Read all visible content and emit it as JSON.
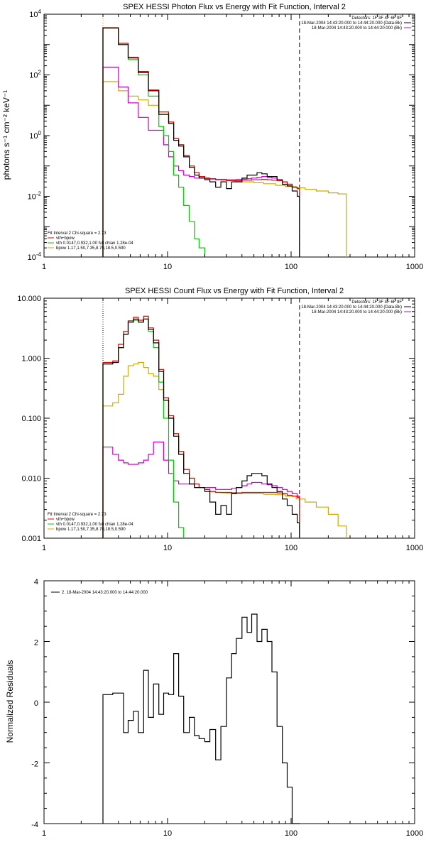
{
  "colors": {
    "data": "#000000",
    "total": "#dd0000",
    "vth": "#00cc00",
    "bpow": "#cc00cc",
    "sum_gold": "#ccaa00",
    "axis": "#000000"
  },
  "chart_data": [
    {
      "type": "line",
      "title": "SPEX HESSI Photon Flux vs Energy with Fit Function, Interval 2",
      "xlabel": "",
      "ylabel": "photons s⁻¹ cm⁻² keV⁻¹",
      "xscale": "log",
      "yscale": "log",
      "xlim": [
        1,
        1000
      ],
      "ylim": [
        0.0001,
        10000
      ],
      "xticks": [
        "1",
        "10",
        "100",
        "1000"
      ],
      "yticks": [
        {
          "base": "10",
          "exp": "-4"
        },
        {
          "base": "10",
          "exp": "-2"
        },
        {
          "base": "10",
          "exp": "0"
        },
        {
          "base": "10",
          "exp": "2"
        },
        {
          "base": "10",
          "exp": "4"
        }
      ],
      "legend_top": [
        "Detectors: 1F 3F 4F 6F 9F",
        "18-Mar-2004 14:43:20.000 to 14:44:20.000 (Data-Bk)",
        "18-Mar-2004 14:43:20.000 to 14:44:20.000 (Bk)"
      ],
      "legend_bottom": [
        "Fit Interval 2   Chi-square = 2.73",
        "vth+bpow",
        "vth 0.0147,0.932,1.00  full chian 1.28e-04",
        "bpow 1.17,1.50,7.35,8.70,18.5,0.590"
      ],
      "vlines": [
        {
          "x": 3,
          "style": "dotted",
          "color": "#ff8800"
        },
        {
          "x": 117,
          "style": "dashed",
          "color": "#000000"
        }
      ],
      "series": [
        {
          "color": "data",
          "x": [
            3,
            3.3,
            3.6,
            4,
            4.4,
            4.8,
            5.3,
            5.8,
            6.4,
            7,
            7.7,
            8.5,
            9.3,
            10.2,
            11.2,
            12.3,
            13.5,
            15,
            16.5,
            18,
            20,
            22,
            24.5,
            27,
            30,
            33,
            36,
            40,
            44,
            48,
            53,
            58,
            64,
            70,
            77,
            85,
            93,
            102,
            112,
            117
          ],
          "y": [
            3500,
            3500,
            3500,
            1000,
            1000,
            360,
            360,
            120,
            120,
            30,
            30,
            5,
            5,
            2.5,
            0.7,
            0.45,
            0.2,
            0.09,
            0.05,
            0.04,
            0.035,
            0.03,
            0.02,
            0.03,
            0.018,
            0.03,
            0.03,
            0.04,
            0.05,
            0.05,
            0.06,
            0.055,
            0.045,
            0.045,
            0.035,
            0.025,
            0.022,
            0.015,
            0.01,
            0
          ]
        },
        {
          "color": "total",
          "x": [
            3,
            3.3,
            3.6,
            4,
            4.4,
            4.8,
            5.3,
            5.8,
            6.4,
            7,
            7.7,
            8.5,
            9.3,
            10.2,
            11.2,
            12.3,
            13.5,
            15,
            16.5,
            18,
            20,
            22,
            24.5,
            27,
            30,
            33,
            36,
            40,
            44,
            48,
            53,
            58,
            64,
            70,
            77,
            85,
            93,
            102,
            112,
            117
          ],
          "y": [
            3600,
            3600,
            3600,
            1100,
            1100,
            380,
            380,
            130,
            130,
            32,
            32,
            6,
            6,
            2.8,
            0.8,
            0.5,
            0.22,
            0.1,
            0.06,
            0.045,
            0.04,
            0.038,
            0.035,
            0.035,
            0.033,
            0.033,
            0.033,
            0.034,
            0.034,
            0.035,
            0.035,
            0.036,
            0.035,
            0.034,
            0.033,
            0.03,
            0.025,
            0.02,
            0.018,
            0
          ]
        },
        {
          "color": "vth",
          "x": [
            3,
            3.3,
            3.6,
            4,
            4.4,
            4.8,
            5.3,
            5.8,
            6.4,
            7,
            7.7,
            8.5,
            9.3,
            10.2,
            11.2,
            12.3,
            13.5,
            15,
            16.5,
            18,
            20
          ],
          "y": [
            3500,
            3500,
            3500,
            1000,
            1000,
            320,
            320,
            100,
            100,
            20,
            20,
            2,
            1,
            0.3,
            0.05,
            0.02,
            0.005,
            0.0015,
            0.0004,
            0.0002,
            0
          ]
        },
        {
          "color": "bpow",
          "x": [
            3,
            3.3,
            3.6,
            4,
            4.4,
            4.8,
            5.3,
            5.8,
            6.4,
            7,
            7.7,
            8.5,
            9.3,
            10.2,
            11.2,
            12.3,
            13.5,
            15,
            16.5,
            18,
            20,
            22,
            24.5,
            27,
            30,
            33,
            36,
            40,
            44,
            48,
            53,
            58,
            64,
            70,
            77,
            85,
            93,
            102,
            112,
            117
          ],
          "y": [
            180,
            180,
            180,
            40,
            40,
            12,
            12,
            4,
            4,
            1.5,
            1.5,
            1.5,
            0.5,
            0.2,
            0.1,
            0.07,
            0.05,
            0.045,
            0.04,
            0.04,
            0.038,
            0.037,
            0.036,
            0.036,
            0.035,
            0.035,
            0.036,
            0.037,
            0.038,
            0.04,
            0.042,
            0.045,
            0.042,
            0.04,
            0.035,
            0.03,
            0.025,
            0.02,
            0.018,
            0
          ]
        },
        {
          "color": "sum_gold",
          "x": [
            3,
            3.3,
            3.6,
            4,
            4.4,
            4.8,
            5.3,
            5.8,
            6.4,
            7,
            7.7,
            8.5,
            9.3,
            10.2,
            11.2,
            12.3,
            13.5,
            15,
            16.5,
            18,
            20,
            22,
            24.5,
            27,
            30,
            35,
            40,
            50,
            60,
            75,
            90,
            110,
            130,
            160,
            200,
            240,
            280
          ],
          "y": [
            60,
            60,
            60,
            30,
            30,
            20,
            20,
            15,
            15,
            10,
            10,
            6,
            6,
            2.8,
            0.8,
            0.5,
            0.22,
            0.1,
            0.06,
            0.045,
            0.04,
            0.038,
            0.035,
            0.034,
            0.033,
            0.032,
            0.03,
            0.028,
            0.026,
            0.023,
            0.021,
            0.019,
            0.017,
            0.015,
            0.013,
            0.012,
            0
          ]
        }
      ]
    },
    {
      "type": "line",
      "title": "SPEX HESSI Count Flux vs Energy with Fit Function, Interval 2",
      "xlabel": "",
      "ylabel": "",
      "xscale": "log",
      "yscale": "log",
      "xlim": [
        1,
        1000
      ],
      "ylim": [
        0.001,
        10
      ],
      "xticks": [
        "1",
        "10",
        "100",
        "1000"
      ],
      "yticks": [
        "0.001",
        "0.010",
        "0.100",
        "1.000",
        "10.000"
      ],
      "legend_top": [
        "Detectors: 1F 3F 4F 6F 9F",
        "18-Mar-2004 14:43:20.000 to 14:44:20.000 (Data-Bk)",
        "18-Mar-2004 14:43:20.000 to 14:44:20.000 (Bk)"
      ],
      "legend_bottom": [
        "Fit Interval 2   Chi-square = 2.73",
        "vth+bpow",
        "vth 0.0147,0.932,1.00  full chian 1.28e-04",
        "bpow 1.17,1.50,7.35,8.70,18.5,0.590"
      ],
      "vlines": [
        {
          "x": 3,
          "style": "dotted",
          "color": "#000000"
        },
        {
          "x": 117,
          "style": "dashed",
          "color": "#000000"
        }
      ],
      "series": [
        {
          "color": "data",
          "x": [
            3,
            3.3,
            3.6,
            4,
            4.4,
            4.8,
            5.3,
            5.8,
            6.4,
            7,
            7.7,
            8.5,
            9.3,
            10.2,
            11.2,
            12.3,
            13.5,
            15,
            16.5,
            18,
            20,
            22,
            24.5,
            27,
            30,
            33,
            36,
            40,
            44,
            48,
            53,
            58,
            64,
            70,
            77,
            85,
            93,
            102,
            112,
            117
          ],
          "y": [
            0.8,
            0.8,
            0.85,
            1.5,
            2.5,
            4,
            4.5,
            4,
            4.5,
            3,
            1.8,
            0.6,
            0.2,
            0.1,
            0.05,
            0.025,
            0.012,
            0.008,
            0.007,
            0.007,
            0.006,
            0.004,
            0.0025,
            0.0035,
            0.0025,
            0.0055,
            0.007,
            0.009,
            0.011,
            0.012,
            0.012,
            0.011,
            0.008,
            0.007,
            0.006,
            0.0045,
            0.0035,
            0.0025,
            0.0018,
            0
          ]
        },
        {
          "color": "total",
          "x": [
            3,
            3.3,
            3.6,
            4,
            4.4,
            4.8,
            5.3,
            5.8,
            6.4,
            7,
            7.7,
            8.5,
            9.3,
            10.2,
            11.2,
            12.3,
            13.5,
            15,
            16.5,
            18,
            20,
            22,
            24.5,
            27,
            30,
            33,
            36,
            40,
            44,
            48,
            53,
            58,
            64,
            70,
            77,
            85,
            93,
            102,
            112,
            117
          ],
          "y": [
            0.85,
            0.85,
            0.9,
            1.7,
            2.8,
            4.2,
            4.8,
            4.3,
            5,
            3.2,
            2,
            0.65,
            0.22,
            0.11,
            0.055,
            0.028,
            0.014,
            0.01,
            0.008,
            0.007,
            0.0065,
            0.006,
            0.0058,
            0.0058,
            0.0058,
            0.0057,
            0.0057,
            0.0058,
            0.0058,
            0.0058,
            0.0058,
            0.0058,
            0.0058,
            0.0058,
            0.0057,
            0.0055,
            0.0052,
            0.005,
            0.0048,
            0
          ]
        },
        {
          "color": "vth",
          "x": [
            3,
            3.3,
            3.6,
            4,
            4.4,
            4.8,
            5.3,
            5.8,
            6.4,
            7,
            7.7,
            8.5,
            9.3,
            10.2,
            11.2,
            12.3,
            13.5
          ],
          "y": [
            0.8,
            0.8,
            0.85,
            1.5,
            2.5,
            4,
            4.3,
            4,
            4.5,
            2.8,
            1.5,
            0.4,
            0.1,
            0.02,
            0.004,
            0.0015,
            0
          ]
        },
        {
          "color": "bpow",
          "x": [
            3,
            3.3,
            3.6,
            4,
            4.4,
            4.8,
            5.3,
            5.8,
            6.4,
            7,
            7.7,
            8.5,
            9.3,
            10.2,
            11.2,
            12.3,
            13.5,
            15,
            16.5,
            18,
            20,
            22,
            24.5,
            27,
            30,
            33,
            36,
            40,
            44,
            48,
            53,
            58,
            64,
            70,
            77,
            85,
            93,
            102,
            112,
            117
          ],
          "y": [
            0.033,
            0.033,
            0.025,
            0.02,
            0.018,
            0.017,
            0.017,
            0.018,
            0.02,
            0.025,
            0.04,
            0.04,
            0.02,
            0.012,
            0.009,
            0.008,
            0.008,
            0.008,
            0.007,
            0.007,
            0.007,
            0.007,
            0.0065,
            0.0065,
            0.0065,
            0.0068,
            0.007,
            0.0075,
            0.008,
            0.0085,
            0.0085,
            0.008,
            0.0078,
            0.0075,
            0.007,
            0.0065,
            0.006,
            0.0055,
            0.005,
            0
          ]
        },
        {
          "color": "sum_gold",
          "x": [
            3,
            3.3,
            3.6,
            4,
            4.4,
            4.8,
            5.3,
            5.8,
            6.4,
            7,
            7.7,
            8.5,
            9.3,
            10.2,
            11.2,
            12.3,
            13.5,
            15,
            16.5,
            18,
            20,
            22,
            24.5,
            27,
            30,
            35,
            40,
            50,
            60,
            75,
            90,
            110,
            130,
            160,
            200,
            240,
            280
          ],
          "y": [
            0.16,
            0.16,
            0.18,
            0.25,
            0.5,
            0.75,
            0.8,
            0.85,
            0.7,
            0.55,
            0.5,
            0.3,
            0.2,
            0.1,
            0.055,
            0.028,
            0.014,
            0.01,
            0.008,
            0.007,
            0.0065,
            0.006,
            0.0058,
            0.0057,
            0.0056,
            0.0055,
            0.0055,
            0.0055,
            0.0054,
            0.0053,
            0.005,
            0.0045,
            0.004,
            0.0033,
            0.0025,
            0.0016,
            0
          ]
        }
      ]
    },
    {
      "type": "line",
      "title": "",
      "xlabel": "",
      "ylabel": "Normalized Residuals",
      "xscale": "log",
      "yscale": "linear",
      "xlim": [
        1,
        1000
      ],
      "ylim": [
        -4,
        4
      ],
      "xticks": [
        "1",
        "10",
        "100",
        "1000"
      ],
      "yticks": [
        "-4",
        "-2",
        "0",
        "2",
        "4"
      ],
      "legend_top_left": [
        "2. 18-Mar-2004 14:43:20.000 to 14:44:20.000"
      ],
      "series": [
        {
          "color": "data",
          "x": [
            3,
            3.3,
            3.6,
            4,
            4.4,
            4.8,
            5.3,
            5.8,
            6.4,
            7,
            7.7,
            8.5,
            9.3,
            10.2,
            11.2,
            12.3,
            13.5,
            15,
            16.5,
            18,
            20,
            22,
            24.5,
            27,
            30,
            33,
            36,
            40,
            44,
            48,
            53,
            58,
            64,
            70,
            77,
            85,
            93,
            102,
            112,
            117
          ],
          "y": [
            0.25,
            0.25,
            0.3,
            0.3,
            -1.0,
            -0.6,
            -0.3,
            -1.0,
            1.05,
            -0.5,
            0.6,
            -0.4,
            0.3,
            0.25,
            1.6,
            0.2,
            -1.0,
            -0.5,
            -1.1,
            -1.2,
            -1.3,
            -0.9,
            -1.9,
            -0.8,
            0.8,
            1.6,
            2.1,
            2.8,
            2.3,
            2.9,
            2.0,
            2.4,
            2.0,
            1.0,
            -0.8,
            -2.0,
            -2.8,
            -4.0,
            -4.0,
            -4.0
          ]
        }
      ]
    }
  ]
}
